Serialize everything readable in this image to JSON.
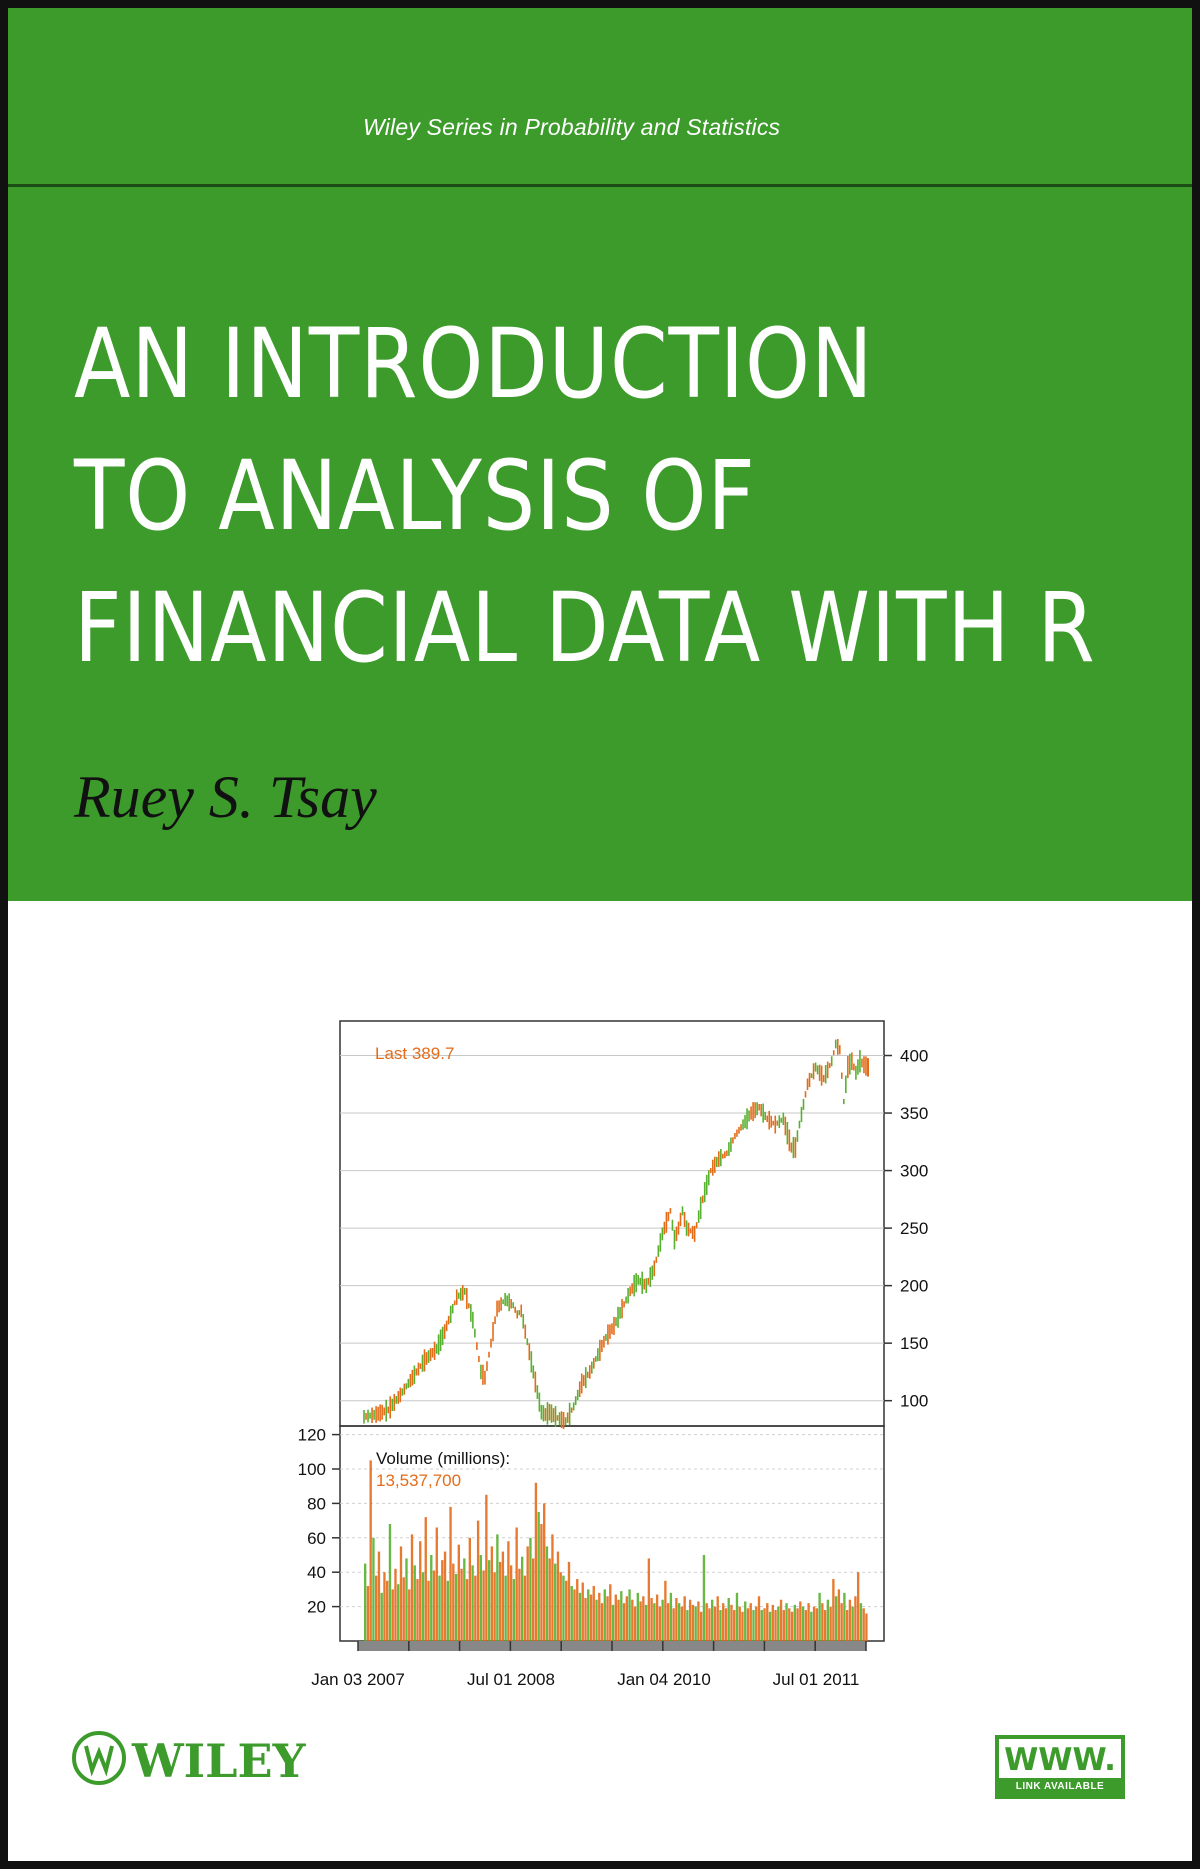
{
  "series_title": "Wiley Series in Probability and Statistics",
  "title_lines": [
    "AN INTRODUCTION",
    "TO ANALYSIS OF",
    "FINANCIAL DATA WITH R"
  ],
  "author": "Ruey S. Tsay",
  "publisher": "WILEY",
  "www_badge": {
    "main": "WWW.",
    "strip": "LINK AVAILABLE"
  },
  "colors": {
    "brand_green": "#3d9b2c",
    "accent_orange": "#e36c1a",
    "volume_green": "#58b030"
  },
  "chart_data": [
    {
      "type": "line",
      "panel": "price",
      "annotation": "Last 389.7",
      "y_ticks": [
        100,
        150,
        200,
        250,
        300,
        350,
        400
      ],
      "ylim": [
        78,
        430
      ],
      "x_range_index": [
        0,
        1250
      ],
      "x": [
        0,
        30,
        60,
        90,
        120,
        150,
        180,
        200,
        215,
        230,
        250,
        270,
        290,
        300,
        310,
        330,
        350,
        370,
        380,
        390,
        400,
        420,
        440,
        450,
        460,
        480,
        500,
        520,
        540,
        560,
        580,
        600,
        620,
        640,
        660,
        680,
        700,
        720,
        740,
        760,
        770,
        780,
        790,
        800,
        820,
        840,
        860,
        880,
        900,
        920,
        940,
        960,
        980,
        1000,
        1020,
        1040,
        1060,
        1070,
        1080,
        1100,
        1120,
        1140,
        1160,
        1170,
        1180,
        1190,
        1200,
        1210,
        1220,
        1230,
        1240,
        1250
      ],
      "values": [
        86,
        88,
        92,
        105,
        120,
        135,
        145,
        160,
        175,
        190,
        195,
        170,
        125,
        120,
        140,
        180,
        188,
        183,
        175,
        178,
        160,
        125,
        90,
        88,
        90,
        85,
        82,
        95,
        115,
        125,
        140,
        155,
        165,
        180,
        195,
        205,
        200,
        215,
        245,
        265,
        240,
        250,
        265,
        250,
        245,
        275,
        300,
        310,
        315,
        330,
        340,
        350,
        355,
        345,
        340,
        345,
        320,
        320,
        340,
        375,
        390,
        380,
        395,
        410,
        405,
        360,
        390,
        395,
        385,
        395,
        392,
        389.7
      ]
    },
    {
      "type": "bar",
      "panel": "volume",
      "label": "Volume (millions):",
      "annotation": "13,537,700",
      "y_ticks": [
        20,
        40,
        60,
        80,
        100,
        120
      ],
      "ylim": [
        0,
        125
      ],
      "values": [
        45,
        32,
        105,
        60,
        38,
        52,
        28,
        40,
        35,
        68,
        30,
        42,
        33,
        55,
        37,
        48,
        30,
        62,
        44,
        36,
        58,
        40,
        72,
        35,
        50,
        41,
        66,
        38,
        47,
        52,
        35,
        78,
        45,
        39,
        56,
        42,
        48,
        36,
        60,
        44,
        38,
        70,
        50,
        41,
        85,
        47,
        55,
        40,
        62,
        46,
        52,
        38,
        58,
        44,
        36,
        66,
        42,
        49,
        38,
        55,
        60,
        48,
        92,
        75,
        68,
        80,
        55,
        48,
        62,
        45,
        52,
        40,
        38,
        35,
        46,
        32,
        30,
        36,
        28,
        34,
        25,
        30,
        27,
        32,
        24,
        28,
        22,
        30,
        26,
        33,
        21,
        27,
        24,
        29,
        22,
        26,
        30,
        24,
        20,
        28,
        23,
        26,
        21,
        48,
        25,
        22,
        27,
        20,
        24,
        35,
        22,
        28,
        19,
        25,
        22,
        20,
        26,
        18,
        24,
        21,
        20,
        23,
        17,
        50,
        22,
        19,
        24,
        20,
        26,
        18,
        22,
        19,
        25,
        21,
        18,
        28,
        20,
        17,
        23,
        19,
        22,
        18,
        20,
        26,
        18,
        19,
        22,
        17,
        21,
        18,
        20,
        24,
        18,
        22,
        19,
        17,
        21,
        19,
        23,
        20,
        18,
        22,
        17,
        20,
        19,
        28,
        22,
        18,
        24,
        20,
        36,
        26,
        30,
        22,
        28,
        18,
        24,
        20,
        26,
        40,
        22,
        19,
        16
      ]
    }
  ],
  "x_date_labels": [
    "Jan 03 2007",
    "Jul 01 2008",
    "Jan 04 2010",
    "Jul 01 2011"
  ]
}
